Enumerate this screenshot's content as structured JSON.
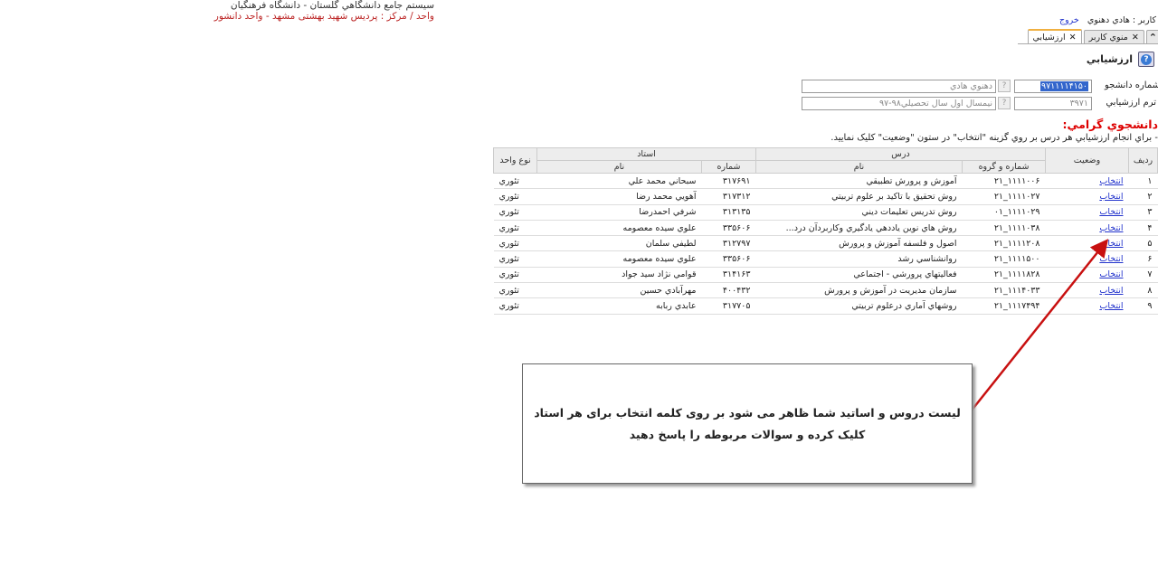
{
  "header": {
    "system": "سیستم جامع دانشگاهي گلستان - دانشگاه فرهنگیان",
    "unit": "واحد / مرکز : پردیس شهید بهشتی مشهد - واحد دانشور"
  },
  "user": {
    "label": "کاربر : هادي دهنوي",
    "logout": "خروج"
  },
  "tabs": [
    {
      "label": "منوي کاربر"
    },
    {
      "label": "ارزشيابي"
    }
  ],
  "page_title": "ارزشيابي",
  "form": {
    "student_label": "شماره دانشجو",
    "student_no": "۹۷۱۱۱۱۴۱۵۰",
    "student_name": "دهنوي هادي",
    "term_label": "ترم ارزشيابي",
    "term_no": "۳۹۷۱",
    "term_name": "نيمسال اول سال تحصيلي۹۸-۹۷"
  },
  "notice": {
    "title": "دانشجوي گرامي:",
    "text": "- براي انجام ارزشيابي هر درس بر روي گزينه \"انتخاب\" در ستون \"وضعيت\" کليک نماييد."
  },
  "table": {
    "headers": {
      "row": "رديف",
      "status": "وضعيت",
      "course": "درس",
      "course_code": "شماره و گروه",
      "course_name": "نام",
      "teacher": "استاد",
      "teacher_no": "شماره",
      "teacher_name": "نام",
      "unit_type": "نوع واحد"
    },
    "rows": [
      [
        "۱",
        "انتخاب",
        "۱۱۱۱۰۰۶_۲۱",
        "آموزش و پرورش تطبيقي",
        "۳۱۷۶۹۱",
        "سبحاني محمد علي",
        "تئوري"
      ],
      [
        "۲",
        "انتخاب",
        "۱۱۱۱۰۲۷_۲۱",
        "روش تحقيق با تاکيد بر علوم تربيتي",
        "۳۱۷۳۱۲",
        "آهويي محمد رضا",
        "تئوري"
      ],
      [
        "۳",
        "انتخاب",
        "۱۱۱۱۰۲۹_۰۱",
        "روش تدريس تعليمات ديني",
        "۳۱۳۱۳۵",
        "شرفي احمدرضا",
        "تئوري"
      ],
      [
        "۴",
        "انتخاب",
        "۱۱۱۱۰۳۸_۲۱",
        "روش هاي نوين ياددهي يادگيري وکاربردآن درد...",
        "۳۳۵۶۰۶",
        "علوي سيده معصومه",
        "تئوري"
      ],
      [
        "۵",
        "انتخاب",
        "۱۱۱۱۲۰۸_۲۱",
        "اصول و فلسفه آموزش و پرورش",
        "۳۱۲۷۹۷",
        "لطيفي سلمان",
        "تئوري"
      ],
      [
        "۶",
        "انتخاب",
        "۱۱۱۱۵۰۰_۲۱",
        "روانشناسي رشد",
        "۳۳۵۶۰۶",
        "علوي سيده معصومه",
        "تئوري"
      ],
      [
        "۷",
        "انتخاب",
        "۱۱۱۱۸۲۸_۲۱",
        "فعاليتهاي پرورشي - اجتماعي",
        "۳۱۴۱۶۳",
        "قوامي نژاد سيد جواد",
        "تئوري"
      ],
      [
        "۸",
        "انتخاب",
        "۱۱۱۴۰۳۳_۲۱",
        "سازمان مديريت در آموزش و پرورش",
        "۴۰۰۴۳۲",
        "مهرآبادي حسين",
        "تئوري"
      ],
      [
        "۹",
        "انتخاب",
        "۱۱۱۷۴۹۴_۲۱",
        "روشهاي آماري درعلوم تربيتي",
        "۳۱۷۷۰۵",
        "عابدي ربابه",
        "تئوري"
      ]
    ]
  },
  "callout": {
    "text": "لیست دروس و اساتید شما ظاهر می شود بر روی کلمه انتخاب برای هر استاد کلیک کرده و سوالات مربوطه را پاسخ دهید"
  },
  "colors": {
    "accent_red": "#cc0000",
    "link": "#2233cc",
    "arrow": "#c81010"
  }
}
